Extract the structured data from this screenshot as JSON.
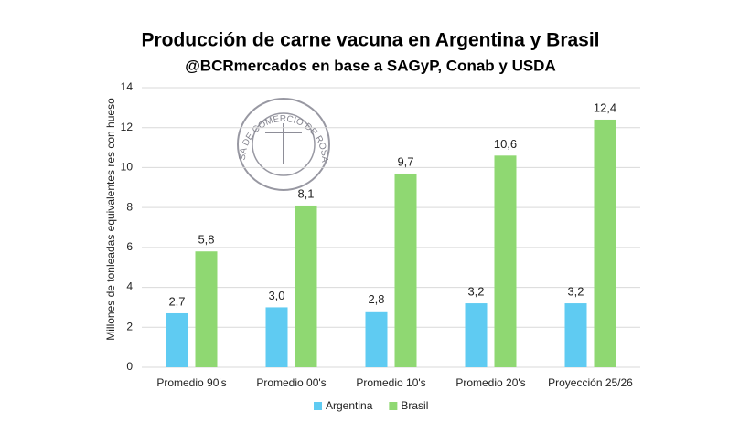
{
  "chart_data": {
    "type": "bar",
    "title": "Producción de carne vacuna en Argentina y Brasil",
    "subtitle": "@BCRmercados en base a SAGyP, Conab y USDA",
    "y_label": "Millones de tonleadas equivalentes res con hueso",
    "logo_text": "BOLSA DE COMERCIO DE ROSARIO",
    "categories": [
      "Promedio 90's",
      "Promedio 00's",
      "Promedio 10's",
      "Promedio 20's",
      "Proyección 25/26"
    ],
    "series": [
      {
        "name": "Argentina",
        "color": "#5fcbf2",
        "values": [
          2.7,
          3.0,
          2.8,
          3.2,
          3.2
        ],
        "value_labels": [
          "2,7",
          "3,0",
          "2,8",
          "3,2",
          "3,2"
        ]
      },
      {
        "name": "Brasil",
        "color": "#8fd872",
        "values": [
          5.8,
          8.1,
          9.7,
          10.6,
          12.4
        ],
        "value_labels": [
          "5,8",
          "8,1",
          "9,7",
          "10,6",
          "12,4"
        ]
      }
    ],
    "ylim": [
      0,
      14
    ],
    "yticks": [
      0,
      2,
      4,
      6,
      8,
      10,
      12,
      14
    ],
    "grid": true,
    "legend": "bottom"
  }
}
